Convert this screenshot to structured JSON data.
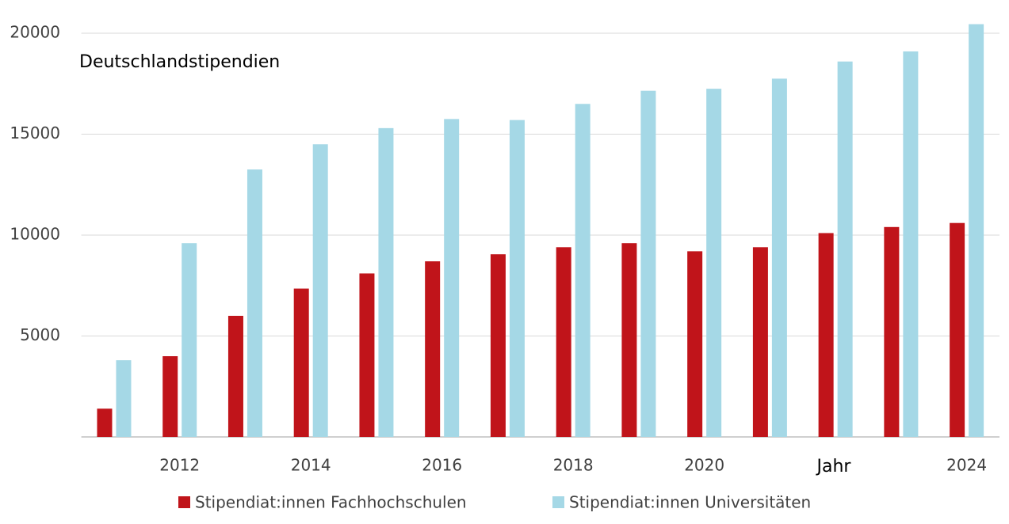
{
  "chart_data": {
    "type": "bar",
    "title": "Deutschlandstipendien",
    "x_label": "Jahr",
    "categories": [
      null,
      "2012",
      null,
      "2014",
      null,
      "2016",
      null,
      "2018",
      null,
      "2020",
      null,
      null,
      null,
      "2024"
    ],
    "series": [
      {
        "name": "Stipendiat:innen Fachhochschulen",
        "color": "#c0141a",
        "values": [
          1400,
          4000,
          6000,
          7350,
          8100,
          8700,
          9050,
          9400,
          9600,
          9200,
          9400,
          10100,
          10400,
          10600
        ]
      },
      {
        "name": "Stipendiat:innen Universitäten",
        "color": "#a5d8e6",
        "values": [
          3800,
          9600,
          13250,
          14500,
          15300,
          15750,
          15700,
          16500,
          17150,
          17250,
          17750,
          18600,
          19100,
          20450
        ]
      }
    ],
    "ylim": [
      0,
      20500
    ],
    "yticks": [
      5000,
      10000,
      15000,
      20000
    ],
    "grid": true
  }
}
